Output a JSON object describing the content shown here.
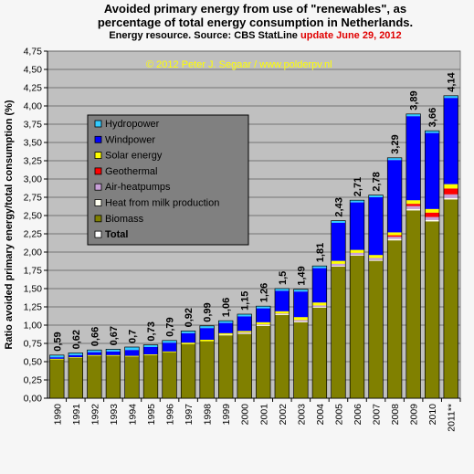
{
  "title_line1": "Avoided primary energy from use of \"renewables\",  as",
  "title_line2": "percentage of total energy consumption in Netherlands.",
  "subtitle": "Energy resource. Source: CBS StatLine",
  "update_text": "update June 29, 2012",
  "watermark": "© 2012 Peter J. Segaar / www.polderpv.nl",
  "chart_data": {
    "type": "bar",
    "stacked": true,
    "ylabel": "Ratio avoided primary energy/total consumption (%)",
    "xlabel": "",
    "ylim": [
      0,
      4.75
    ],
    "yticks": [
      "0,00",
      "0,25",
      "0,50",
      "0,75",
      "1,00",
      "1,25",
      "1,50",
      "1,75",
      "2,00",
      "2,25",
      "2,50",
      "2,75",
      "3,00",
      "3,25",
      "3,50",
      "3,75",
      "4,00",
      "4,25",
      "4,50",
      "4,75"
    ],
    "grid": true,
    "legend_position": "upper-left",
    "categories": [
      "1990",
      "1991",
      "1992",
      "1993",
      "1994",
      "1995",
      "1996",
      "1997",
      "1998",
      "1999",
      "2000",
      "2001",
      "2002",
      "2003",
      "2004",
      "2005",
      "2006",
      "2007",
      "2008",
      "2009",
      "2010",
      "2011**"
    ],
    "totals": [
      0.59,
      0.62,
      0.66,
      0.67,
      0.7,
      0.73,
      0.79,
      0.92,
      0.99,
      1.06,
      1.15,
      1.26,
      1.5,
      1.49,
      1.81,
      2.43,
      2.71,
      2.78,
      3.29,
      3.89,
      3.66,
      4.14
    ],
    "total_labels": [
      "0,59",
      "0,62",
      "0,66",
      "0,67",
      "0,7",
      "0,73",
      "0,79",
      "0,92",
      "0,99",
      "1,06",
      "1,15",
      "1,26",
      "1,5",
      "1,49",
      "1,81",
      "2,43",
      "2,71",
      "2,78",
      "3,29",
      "3,89",
      "3,66",
      "4,14"
    ],
    "series": [
      {
        "name": "Biomass",
        "color": "#808000",
        "values": [
          0.53,
          0.55,
          0.58,
          0.58,
          0.57,
          0.59,
          0.63,
          0.74,
          0.78,
          0.86,
          0.88,
          0.99,
          1.14,
          1.04,
          1.24,
          1.8,
          1.95,
          1.88,
          2.16,
          2.57,
          2.42,
          2.72
        ]
      },
      {
        "name": "Heat from milk production",
        "color": "#fffff0",
        "values": [
          0,
          0,
          0,
          0,
          0,
          0,
          0,
          0,
          0,
          0.01,
          0.01,
          0.01,
          0.01,
          0.01,
          0.01,
          0.01,
          0.01,
          0.01,
          0.02,
          0.02,
          0.02,
          0.02
        ]
      },
      {
        "name": "Air-heatpumps",
        "color": "#c8a0d8",
        "values": [
          0,
          0,
          0,
          0,
          0,
          0,
          0,
          0,
          0,
          0,
          0.01,
          0.01,
          0.01,
          0.02,
          0.02,
          0.03,
          0.03,
          0.03,
          0.03,
          0.04,
          0.04,
          0.05
        ]
      },
      {
        "name": "Geothermal",
        "color": "#ff0000",
        "values": [
          0,
          0,
          0,
          0,
          0,
          0,
          0,
          0,
          0,
          0,
          0,
          0,
          0,
          0,
          0,
          0,
          0,
          0,
          0.02,
          0.03,
          0.06,
          0.08
        ]
      },
      {
        "name": "Solar energy",
        "color": "#ffff00",
        "values": [
          0.01,
          0.01,
          0.01,
          0.01,
          0.01,
          0.01,
          0.01,
          0.02,
          0.02,
          0.02,
          0.02,
          0.03,
          0.03,
          0.04,
          0.04,
          0.04,
          0.04,
          0.04,
          0.04,
          0.05,
          0.05,
          0.06
        ]
      },
      {
        "name": "Windpower",
        "color": "#0000ff",
        "values": [
          0.02,
          0.03,
          0.04,
          0.05,
          0.08,
          0.1,
          0.12,
          0.13,
          0.16,
          0.14,
          0.2,
          0.19,
          0.28,
          0.35,
          0.47,
          0.52,
          0.65,
          0.79,
          0.99,
          1.15,
          1.04,
          1.18
        ]
      },
      {
        "name": "Hydropower",
        "color": "#33ccff",
        "values": [
          0.03,
          0.03,
          0.03,
          0.03,
          0.04,
          0.03,
          0.03,
          0.03,
          0.03,
          0.03,
          0.03,
          0.03,
          0.03,
          0.03,
          0.03,
          0.03,
          0.03,
          0.03,
          0.03,
          0.03,
          0.03,
          0.03
        ]
      }
    ],
    "legend": [
      {
        "label": "Hydropower",
        "color": "#33ccff"
      },
      {
        "label": "Windpower",
        "color": "#0000ff"
      },
      {
        "label": "Solar energy",
        "color": "#ffff00"
      },
      {
        "label": "Geothermal",
        "color": "#ff0000"
      },
      {
        "label": "Air-heatpumps",
        "color": "#c8a0d8"
      },
      {
        "label": "Heat from milk production",
        "color": "#fffff0"
      },
      {
        "label": "Biomass",
        "color": "#808000"
      },
      {
        "label": "Total",
        "color": "#ffffff",
        "bold": true
      }
    ]
  }
}
